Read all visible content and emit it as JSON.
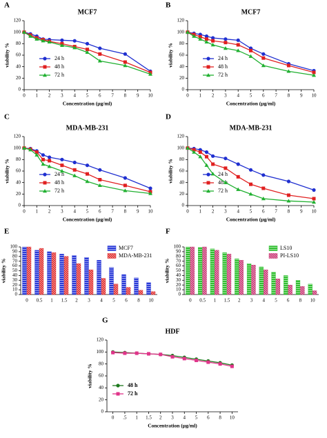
{
  "chart_data": [
    {
      "panel": "A",
      "type": "line",
      "title": "MCF7",
      "xlabel": "Concentration (µg/ml)",
      "ylabel": "viability %",
      "x": [
        0,
        0.5,
        1,
        1.5,
        2,
        3,
        4,
        5,
        6,
        8,
        10
      ],
      "xlim": [
        0,
        10
      ],
      "xticks": [
        0,
        1,
        2,
        3,
        4,
        5,
        6,
        7,
        8,
        9,
        10
      ],
      "ylim": [
        0,
        120
      ],
      "yticks": [
        0,
        20,
        40,
        60,
        80,
        100,
        120
      ],
      "series": [
        {
          "name": "24 h",
          "color": "#1f2fd0",
          "values": [
            100,
            97,
            93,
            88,
            87,
            86,
            85,
            80,
            72,
            62,
            32
          ]
        },
        {
          "name": "48 h",
          "color": "#e02020",
          "values": [
            100,
            95,
            90,
            87,
            84,
            80,
            75,
            70,
            62,
            48,
            30
          ]
        },
        {
          "name": "72 h",
          "color": "#20b030",
          "values": [
            100,
            93,
            88,
            85,
            83,
            77,
            73,
            65,
            50,
            42,
            27
          ]
        }
      ]
    },
    {
      "panel": "B",
      "type": "line",
      "title": "MCF7",
      "xlabel": "Concentration (µg/ml)",
      "ylabel": "viability %",
      "x": [
        0,
        0.5,
        1,
        1.5,
        2,
        3,
        4,
        5,
        6,
        8,
        10
      ],
      "xlim": [
        0,
        10
      ],
      "xticks": [
        0,
        1,
        2,
        3,
        4,
        5,
        6,
        7,
        8,
        9,
        10
      ],
      "ylim": [
        0,
        120
      ],
      "yticks": [
        0,
        20,
        40,
        60,
        80,
        100,
        120
      ],
      "series": [
        {
          "name": "24 h",
          "color": "#1f2fd0",
          "values": [
            100,
            98,
            96,
            93,
            90,
            88,
            86,
            72,
            62,
            45,
            33
          ]
        },
        {
          "name": "48 h",
          "color": "#e02020",
          "values": [
            100,
            96,
            92,
            88,
            85,
            82,
            78,
            68,
            55,
            42,
            30
          ]
        },
        {
          "name": "72 h",
          "color": "#20b030",
          "values": [
            100,
            93,
            88,
            83,
            78,
            72,
            68,
            58,
            42,
            32,
            25
          ]
        }
      ]
    },
    {
      "panel": "C",
      "type": "line",
      "title": "MDA-MB-231",
      "xlabel": "Concentration (µg/ml)",
      "ylabel": "viability %",
      "x": [
        0,
        0.5,
        1,
        1.5,
        2,
        3,
        4,
        5,
        6,
        8,
        10
      ],
      "xlim": [
        0,
        10
      ],
      "xticks": [
        0,
        1,
        2,
        3,
        4,
        5,
        6,
        7,
        8,
        9,
        10
      ],
      "ylim": [
        0,
        120
      ],
      "yticks": [
        0,
        20,
        40,
        60,
        80,
        100,
        120
      ],
      "series": [
        {
          "name": "24 h",
          "color": "#1f2fd0",
          "values": [
            100,
            99,
            95,
            88,
            84,
            80,
            75,
            70,
            62,
            48,
            30
          ]
        },
        {
          "name": "48 h",
          "color": "#e02020",
          "values": [
            100,
            98,
            93,
            80,
            78,
            70,
            62,
            55,
            45,
            35,
            24
          ]
        },
        {
          "name": "72 h",
          "color": "#20b030",
          "values": [
            100,
            97,
            88,
            72,
            68,
            60,
            52,
            42,
            35,
            26,
            21
          ]
        }
      ]
    },
    {
      "panel": "D",
      "type": "line",
      "title": "MDA-MB-231",
      "xlabel": "Concentration (µg/ml)",
      "ylabel": "viability %",
      "x": [
        0,
        0.5,
        1,
        1.5,
        2,
        3,
        4,
        5,
        6,
        8,
        10
      ],
      "xlim": [
        0,
        10
      ],
      "xticks": [
        0,
        1,
        2,
        3,
        4,
        5,
        6,
        7,
        8,
        9,
        10
      ],
      "ylim": [
        0,
        120
      ],
      "yticks": [
        0,
        20,
        40,
        60,
        80,
        100,
        120
      ],
      "series": [
        {
          "name": "24 h",
          "color": "#1f2fd0",
          "values": [
            100,
            99,
            97,
            93,
            86,
            82,
            72,
            62,
            53,
            42,
            27
          ]
        },
        {
          "name": "48 h",
          "color": "#e02020",
          "values": [
            100,
            97,
            93,
            85,
            72,
            65,
            50,
            37,
            30,
            18,
            12
          ]
        },
        {
          "name": "72 h",
          "color": "#20b030",
          "values": [
            100,
            93,
            85,
            70,
            55,
            40,
            28,
            20,
            12,
            8,
            6
          ]
        }
      ]
    },
    {
      "panel": "E",
      "type": "bar",
      "ylabel": "viability %",
      "categories": [
        "0",
        "0.5",
        "1",
        "1.5",
        "2",
        "3",
        "4",
        "5",
        "6",
        "8",
        "10"
      ],
      "ylim": [
        0,
        100
      ],
      "yticks": [
        0,
        10,
        20,
        30,
        40,
        50,
        60,
        70,
        80,
        90,
        100
      ],
      "series": [
        {
          "name": "MCF7",
          "color": "#2a3ad8",
          "values": [
            100,
            93,
            90,
            85,
            82,
            78,
            72,
            57,
            42,
            35,
            25
          ]
        },
        {
          "name": "MDA-MB-231",
          "color": "#e02828",
          "values": [
            100,
            97,
            88,
            80,
            65,
            52,
            34,
            22,
            15,
            9,
            6
          ]
        }
      ]
    },
    {
      "panel": "F",
      "type": "bar",
      "ylabel": "viability %",
      "categories": [
        "0",
        "0.5",
        "1",
        "1.5",
        "2",
        "3",
        "4",
        "5",
        "6",
        "8",
        "10"
      ],
      "ylim": [
        0,
        100
      ],
      "yticks": [
        0,
        10,
        20,
        30,
        40,
        50,
        60,
        70,
        80,
        90,
        100
      ],
      "series": [
        {
          "name": "LS10",
          "color": "#30c030",
          "values": [
            100,
            99,
            96,
            88,
            75,
            65,
            58,
            47,
            40,
            30,
            22
          ]
        },
        {
          "name": "PI-LS10",
          "color": "#c83070",
          "values": [
            100,
            100,
            93,
            85,
            72,
            62,
            52,
            33,
            20,
            17,
            8
          ]
        }
      ]
    },
    {
      "panel": "G",
      "type": "line",
      "title": "HDF",
      "xlabel": "Concentration (µg/ml)",
      "ylabel": "viability %",
      "categories": [
        "0",
        ".5",
        "1",
        "1.5",
        "2",
        "3",
        "4",
        "5",
        "6",
        "8",
        "10"
      ],
      "ylim": [
        0,
        120
      ],
      "yticks": [
        0,
        20,
        40,
        60,
        80,
        100,
        120
      ],
      "series": [
        {
          "name": "48 h",
          "color": "#1e7a1e",
          "values": [
            100,
            99,
            98,
            97,
            96,
            94,
            91,
            88,
            85,
            82,
            78
          ]
        },
        {
          "name": "72 h",
          "color": "#e0348a",
          "values": [
            99,
            98,
            98,
            97,
            96,
            92,
            89,
            86,
            83,
            80,
            76
          ]
        }
      ]
    }
  ]
}
